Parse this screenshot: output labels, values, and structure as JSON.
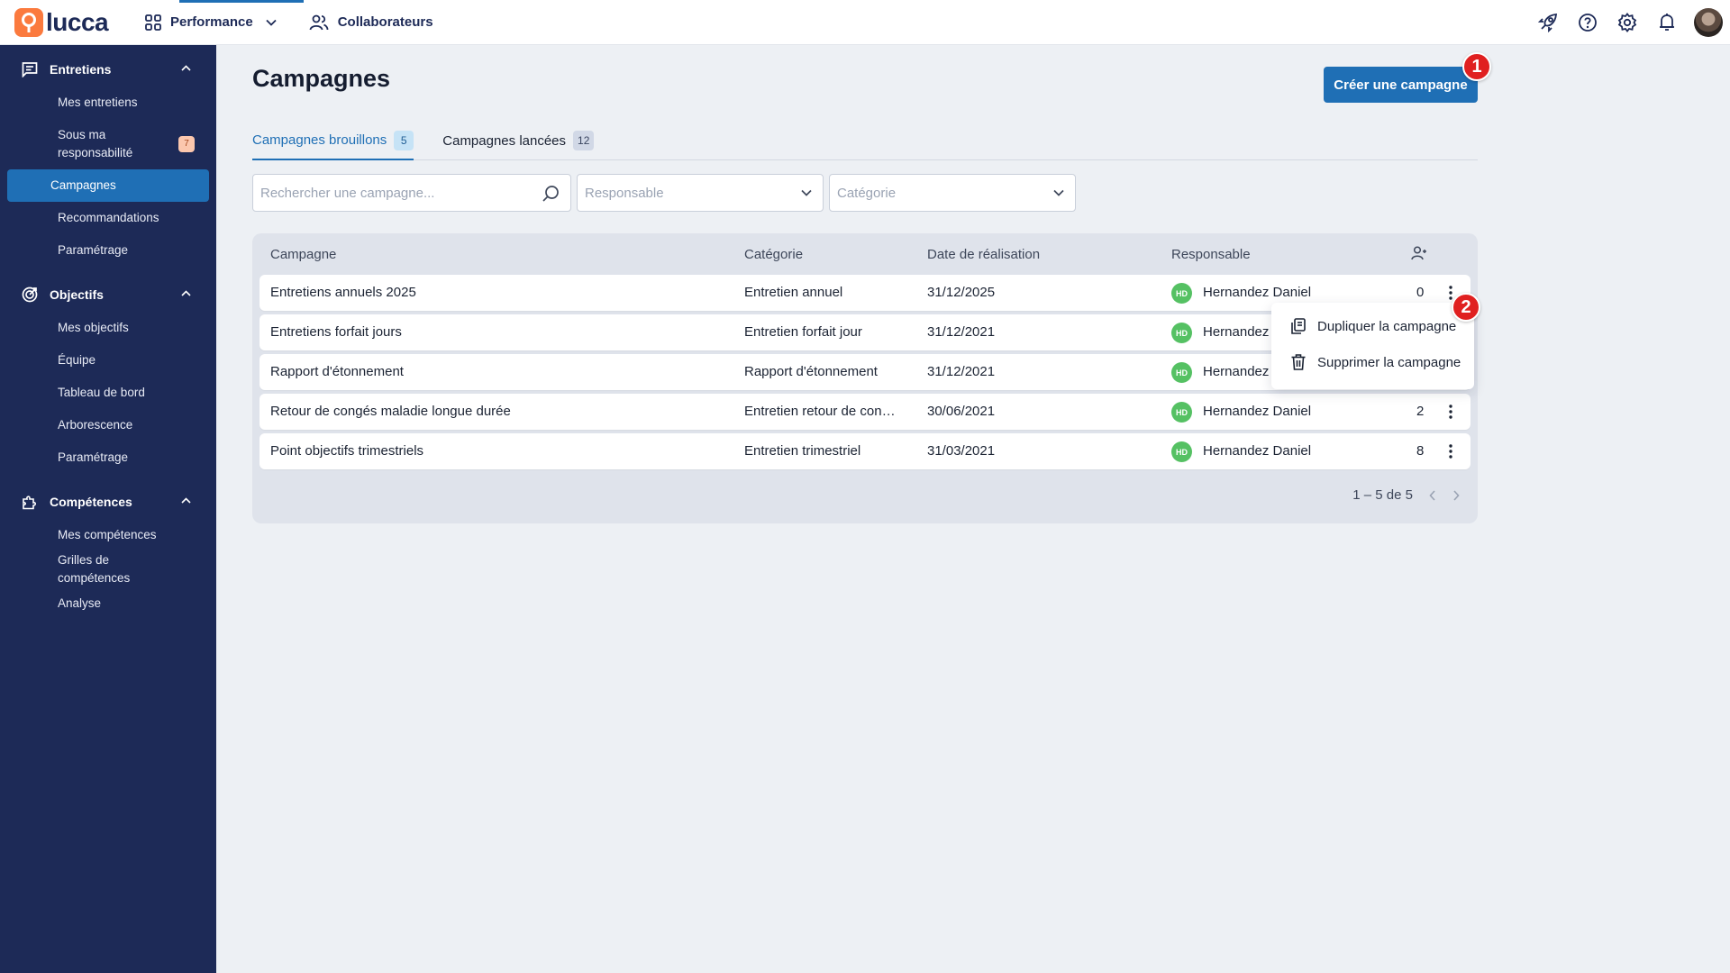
{
  "app": {
    "logo_text": "lucca"
  },
  "topnav": {
    "performance": "Performance",
    "collaborateurs": "Collaborateurs"
  },
  "sidebar": {
    "sections": [
      {
        "title": "Entretiens",
        "items": [
          "Mes entretiens",
          "Sous ma responsabilité",
          "Campagnes",
          "Recommandations",
          "Paramétrage"
        ],
        "badge": "7"
      },
      {
        "title": "Objectifs",
        "items": [
          "Mes objectifs",
          "Équipe",
          "Tableau de bord",
          "Arborescence",
          "Paramétrage"
        ]
      },
      {
        "title": "Compétences",
        "items": [
          "Mes compétences",
          "Grilles de compétences",
          "Analyse"
        ]
      }
    ]
  },
  "page": {
    "title": "Campagnes",
    "create_button": "Créer une campagne"
  },
  "tabs": [
    {
      "label": "Campagnes brouillons",
      "count": "5"
    },
    {
      "label": "Campagnes lancées",
      "count": "12"
    }
  ],
  "filters": {
    "search_placeholder": "Rechercher une campagne...",
    "responsable_placeholder": "Responsable",
    "categorie_placeholder": "Catégorie"
  },
  "table": {
    "headers": [
      "Campagne",
      "Catégorie",
      "Date de réalisation",
      "Responsable"
    ],
    "rows": [
      {
        "campagne": "Entretiens annuels 2025",
        "categorie": "Entretien annuel",
        "date": "31/12/2025",
        "initials": "HD",
        "responsable": "Hernandez Daniel",
        "count": "0"
      },
      {
        "campagne": "Entretiens forfait jours",
        "categorie": "Entretien forfait jour",
        "date": "31/12/2021",
        "initials": "HD",
        "responsable": "Hernandez Daniel",
        "count": ""
      },
      {
        "campagne": "Rapport d'étonnement",
        "categorie": "Rapport d'étonnement",
        "date": "31/12/2021",
        "initials": "HD",
        "responsable": "Hernandez Daniel",
        "count": ""
      },
      {
        "campagne": "Retour de congés maladie longue durée",
        "categorie": "Entretien retour de con…",
        "date": "30/06/2021",
        "initials": "HD",
        "responsable": "Hernandez Daniel",
        "count": "2"
      },
      {
        "campagne": "Point objectifs trimestriels",
        "categorie": "Entretien trimestriel",
        "date": "31/03/2021",
        "initials": "HD",
        "responsable": "Hernandez Daniel",
        "count": "8"
      }
    ],
    "pagination": "1 – 5 de 5"
  },
  "context_menu": {
    "items": [
      "Dupliquer la campagne",
      "Supprimer la campagne"
    ]
  },
  "markers": [
    "1",
    "2"
  ],
  "colors": {
    "sidebar_bg": "#1d2a57",
    "primary": "#1f6fb5",
    "brand_orange": "#fb7a3e",
    "avatar_green": "#55c163",
    "marker_red": "#e02020"
  }
}
